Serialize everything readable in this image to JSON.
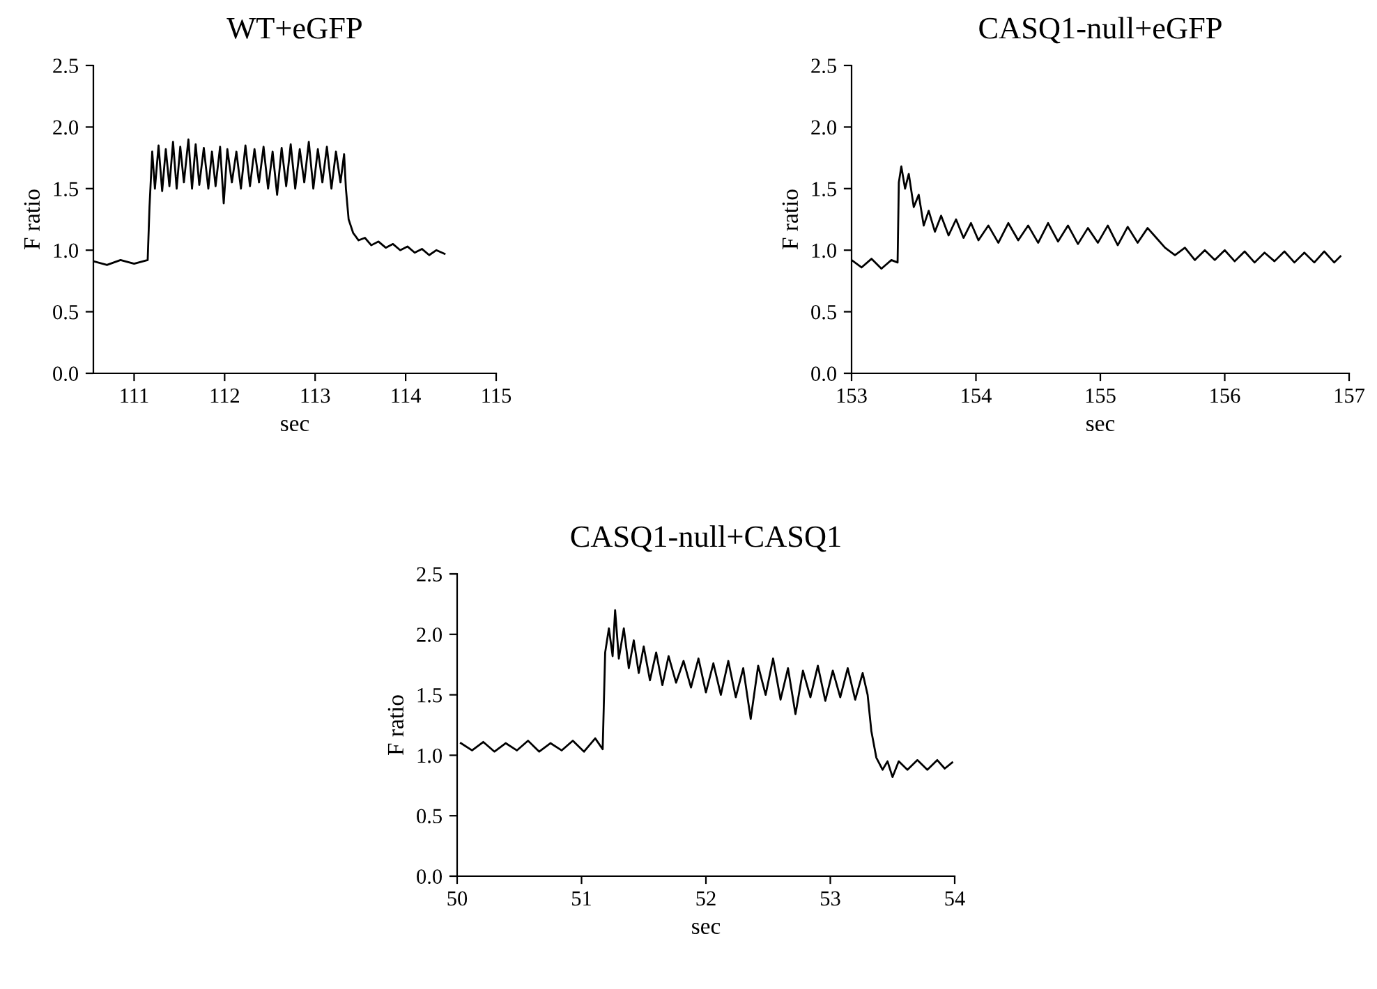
{
  "chart_data": [
    {
      "type": "line",
      "title": "WT+eGFP",
      "xlabel": "sec",
      "ylabel": "F ratio",
      "xlim": [
        110.55,
        115
      ],
      "xticks": [
        111,
        112,
        113,
        114,
        115
      ],
      "ylim": [
        0,
        2.5
      ],
      "yticks": [
        {
          "value": 0,
          "label": "0.0"
        },
        0.5,
        {
          "value": 1,
          "label": "1.0"
        },
        1.5,
        {
          "value": 2,
          "label": "2.0"
        },
        2.5
      ],
      "series": [
        {
          "color": "#000000",
          "x": [
            110.55,
            110.7,
            110.85,
            111.0,
            111.15,
            111.17,
            111.2,
            111.23,
            111.27,
            111.31,
            111.35,
            111.39,
            111.43,
            111.47,
            111.51,
            111.55,
            111.6,
            111.64,
            111.68,
            111.72,
            111.77,
            111.82,
            111.86,
            111.9,
            111.95,
            111.99,
            112.03,
            112.08,
            112.13,
            112.18,
            112.23,
            112.28,
            112.33,
            112.38,
            112.43,
            112.48,
            112.53,
            112.58,
            112.63,
            112.68,
            112.73,
            112.78,
            112.83,
            112.88,
            112.93,
            112.98,
            113.03,
            113.08,
            113.13,
            113.18,
            113.23,
            113.28,
            113.32,
            113.34,
            113.37,
            113.42,
            113.48,
            113.55,
            113.62,
            113.7,
            113.78,
            113.86,
            113.94,
            114.02,
            114.1,
            114.18,
            114.26,
            114.34,
            114.43
          ],
          "values": [
            0.91,
            0.88,
            0.92,
            0.89,
            0.92,
            1.35,
            1.8,
            1.5,
            1.85,
            1.48,
            1.82,
            1.52,
            1.88,
            1.5,
            1.84,
            1.55,
            1.9,
            1.5,
            1.86,
            1.53,
            1.83,
            1.5,
            1.8,
            1.52,
            1.84,
            1.38,
            1.82,
            1.55,
            1.8,
            1.5,
            1.85,
            1.52,
            1.82,
            1.55,
            1.84,
            1.5,
            1.8,
            1.45,
            1.83,
            1.52,
            1.86,
            1.5,
            1.82,
            1.55,
            1.88,
            1.5,
            1.82,
            1.55,
            1.84,
            1.5,
            1.8,
            1.55,
            1.78,
            1.5,
            1.25,
            1.14,
            1.08,
            1.1,
            1.04,
            1.07,
            1.02,
            1.05,
            1.0,
            1.03,
            0.98,
            1.01,
            0.96,
            1.0,
            0.97
          ]
        }
      ]
    },
    {
      "type": "line",
      "title": "CASQ1-null+eGFP",
      "xlabel": "sec",
      "ylabel": "F ratio",
      "xlim": [
        153,
        157
      ],
      "xticks": [
        153,
        154,
        155,
        156,
        157
      ],
      "ylim": [
        0,
        2.5
      ],
      "yticks": [
        {
          "value": 0,
          "label": "0.0"
        },
        0.5,
        {
          "value": 1,
          "label": "1.0"
        },
        1.5,
        {
          "value": 2,
          "label": "2.0"
        },
        2.5
      ],
      "series": [
        {
          "color": "#000000",
          "x": [
            153.0,
            153.08,
            153.16,
            153.24,
            153.32,
            153.37,
            153.38,
            153.4,
            153.43,
            153.46,
            153.5,
            153.54,
            153.58,
            153.62,
            153.67,
            153.72,
            153.78,
            153.84,
            153.9,
            153.96,
            154.02,
            154.1,
            154.18,
            154.26,
            154.34,
            154.42,
            154.5,
            154.58,
            154.66,
            154.74,
            154.82,
            154.9,
            154.98,
            155.06,
            155.14,
            155.22,
            155.3,
            155.38,
            155.45,
            155.52,
            155.6,
            155.68,
            155.76,
            155.84,
            155.92,
            156.0,
            156.08,
            156.16,
            156.24,
            156.32,
            156.4,
            156.48,
            156.56,
            156.64,
            156.72,
            156.8,
            156.88,
            156.93
          ],
          "values": [
            0.92,
            0.86,
            0.93,
            0.85,
            0.92,
            0.9,
            1.55,
            1.68,
            1.5,
            1.62,
            1.35,
            1.45,
            1.2,
            1.32,
            1.15,
            1.28,
            1.12,
            1.25,
            1.1,
            1.22,
            1.08,
            1.2,
            1.06,
            1.22,
            1.08,
            1.2,
            1.06,
            1.22,
            1.07,
            1.2,
            1.05,
            1.18,
            1.06,
            1.2,
            1.04,
            1.19,
            1.06,
            1.18,
            1.1,
            1.02,
            0.96,
            1.02,
            0.92,
            1.0,
            0.92,
            1.0,
            0.91,
            0.99,
            0.9,
            0.98,
            0.91,
            0.99,
            0.9,
            0.98,
            0.9,
            0.99,
            0.9,
            0.95
          ]
        }
      ]
    },
    {
      "type": "line",
      "title": "CASQ1-null+CASQ1",
      "xlabel": "sec",
      "ylabel": "F ratio",
      "xlim": [
        50,
        54
      ],
      "xticks": [
        50,
        51,
        52,
        53,
        54
      ],
      "ylim": [
        0,
        2.5
      ],
      "yticks": [
        {
          "value": 0,
          "label": "0.0"
        },
        0.5,
        {
          "value": 1,
          "label": "1.0"
        },
        1.5,
        {
          "value": 2,
          "label": "2.0"
        },
        2.5
      ],
      "series": [
        {
          "color": "#000000",
          "x": [
            50.03,
            50.12,
            50.21,
            50.3,
            50.39,
            50.48,
            50.57,
            50.66,
            50.75,
            50.84,
            50.93,
            51.02,
            51.11,
            51.17,
            51.19,
            51.22,
            51.25,
            51.27,
            51.3,
            51.34,
            51.38,
            51.42,
            51.46,
            51.5,
            51.55,
            51.6,
            51.65,
            51.7,
            51.76,
            51.82,
            51.88,
            51.94,
            52.0,
            52.06,
            52.12,
            52.18,
            52.24,
            52.3,
            52.36,
            52.42,
            52.48,
            52.54,
            52.6,
            52.66,
            52.72,
            52.78,
            52.84,
            52.9,
            52.96,
            53.02,
            53.08,
            53.14,
            53.2,
            53.26,
            53.3,
            53.33,
            53.37,
            53.42,
            53.46,
            53.5,
            53.55,
            53.62,
            53.7,
            53.78,
            53.86,
            53.92,
            53.98
          ],
          "values": [
            1.1,
            1.04,
            1.11,
            1.03,
            1.1,
            1.04,
            1.12,
            1.03,
            1.1,
            1.04,
            1.12,
            1.03,
            1.14,
            1.05,
            1.85,
            2.05,
            1.82,
            2.2,
            1.8,
            2.05,
            1.72,
            1.95,
            1.68,
            1.9,
            1.62,
            1.85,
            1.58,
            1.82,
            1.6,
            1.78,
            1.56,
            1.8,
            1.52,
            1.76,
            1.5,
            1.78,
            1.48,
            1.72,
            1.3,
            1.74,
            1.5,
            1.8,
            1.46,
            1.72,
            1.34,
            1.7,
            1.48,
            1.74,
            1.45,
            1.7,
            1.48,
            1.72,
            1.46,
            1.68,
            1.5,
            1.2,
            0.98,
            0.88,
            0.95,
            0.82,
            0.95,
            0.88,
            0.96,
            0.88,
            0.96,
            0.89,
            0.94
          ]
        }
      ]
    }
  ]
}
